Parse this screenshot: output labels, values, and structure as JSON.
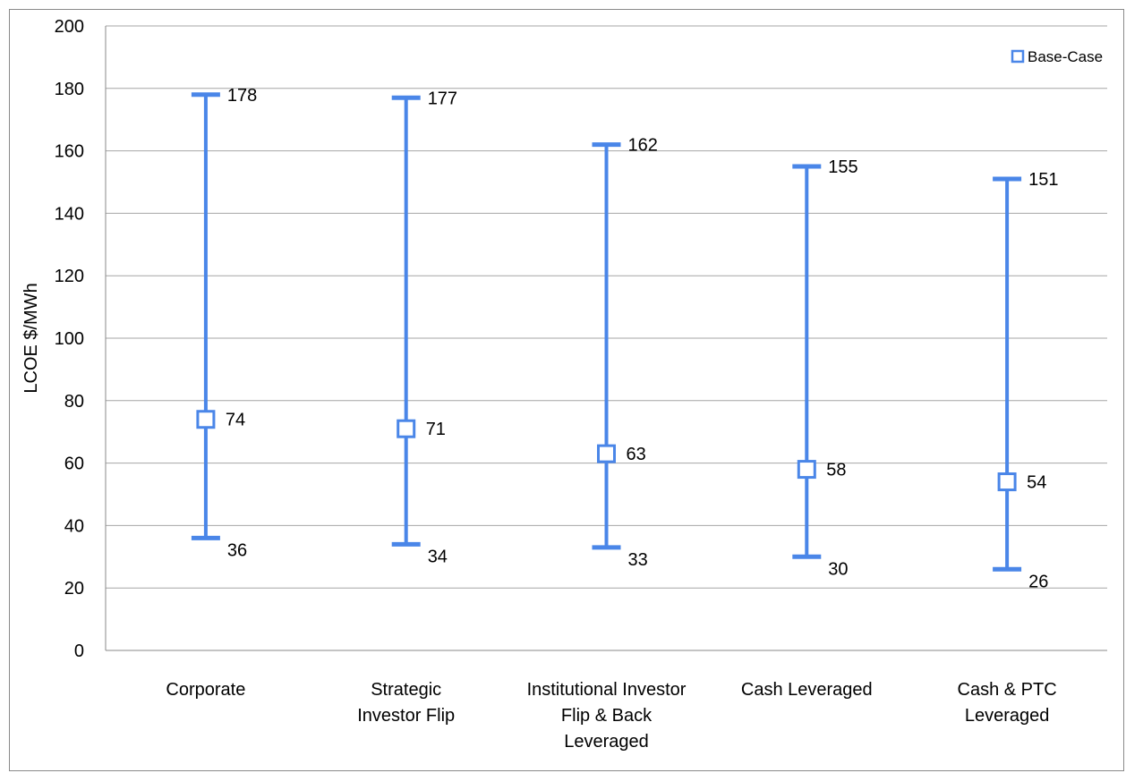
{
  "chart_data": {
    "type": "range",
    "title": "",
    "xlabel": "",
    "ylabel": "LCOE $/MWh",
    "ylim": [
      0,
      200
    ],
    "yticks": [
      0,
      20,
      40,
      60,
      80,
      100,
      120,
      140,
      160,
      180,
      200
    ],
    "grid": true,
    "legend": {
      "position": "top-right",
      "entries": [
        "Base-Case"
      ]
    },
    "categories": [
      [
        "Corporate"
      ],
      [
        "Strategic",
        "Investor Flip"
      ],
      [
        "Institutional Investor",
        "Flip & Back",
        "Leveraged"
      ],
      [
        "Cash Leveraged"
      ],
      [
        "Cash & PTC",
        "Leveraged"
      ]
    ],
    "series": [
      {
        "name": "High",
        "values": [
          178,
          177,
          162,
          155,
          151
        ]
      },
      {
        "name": "Base-Case",
        "values": [
          74,
          71,
          63,
          58,
          54
        ]
      },
      {
        "name": "Low",
        "values": [
          36,
          34,
          33,
          30,
          26
        ]
      }
    ],
    "colors": {
      "series": "#4a86e8",
      "grid": "#a6a6a6",
      "axis": "#8a8a8a"
    }
  }
}
